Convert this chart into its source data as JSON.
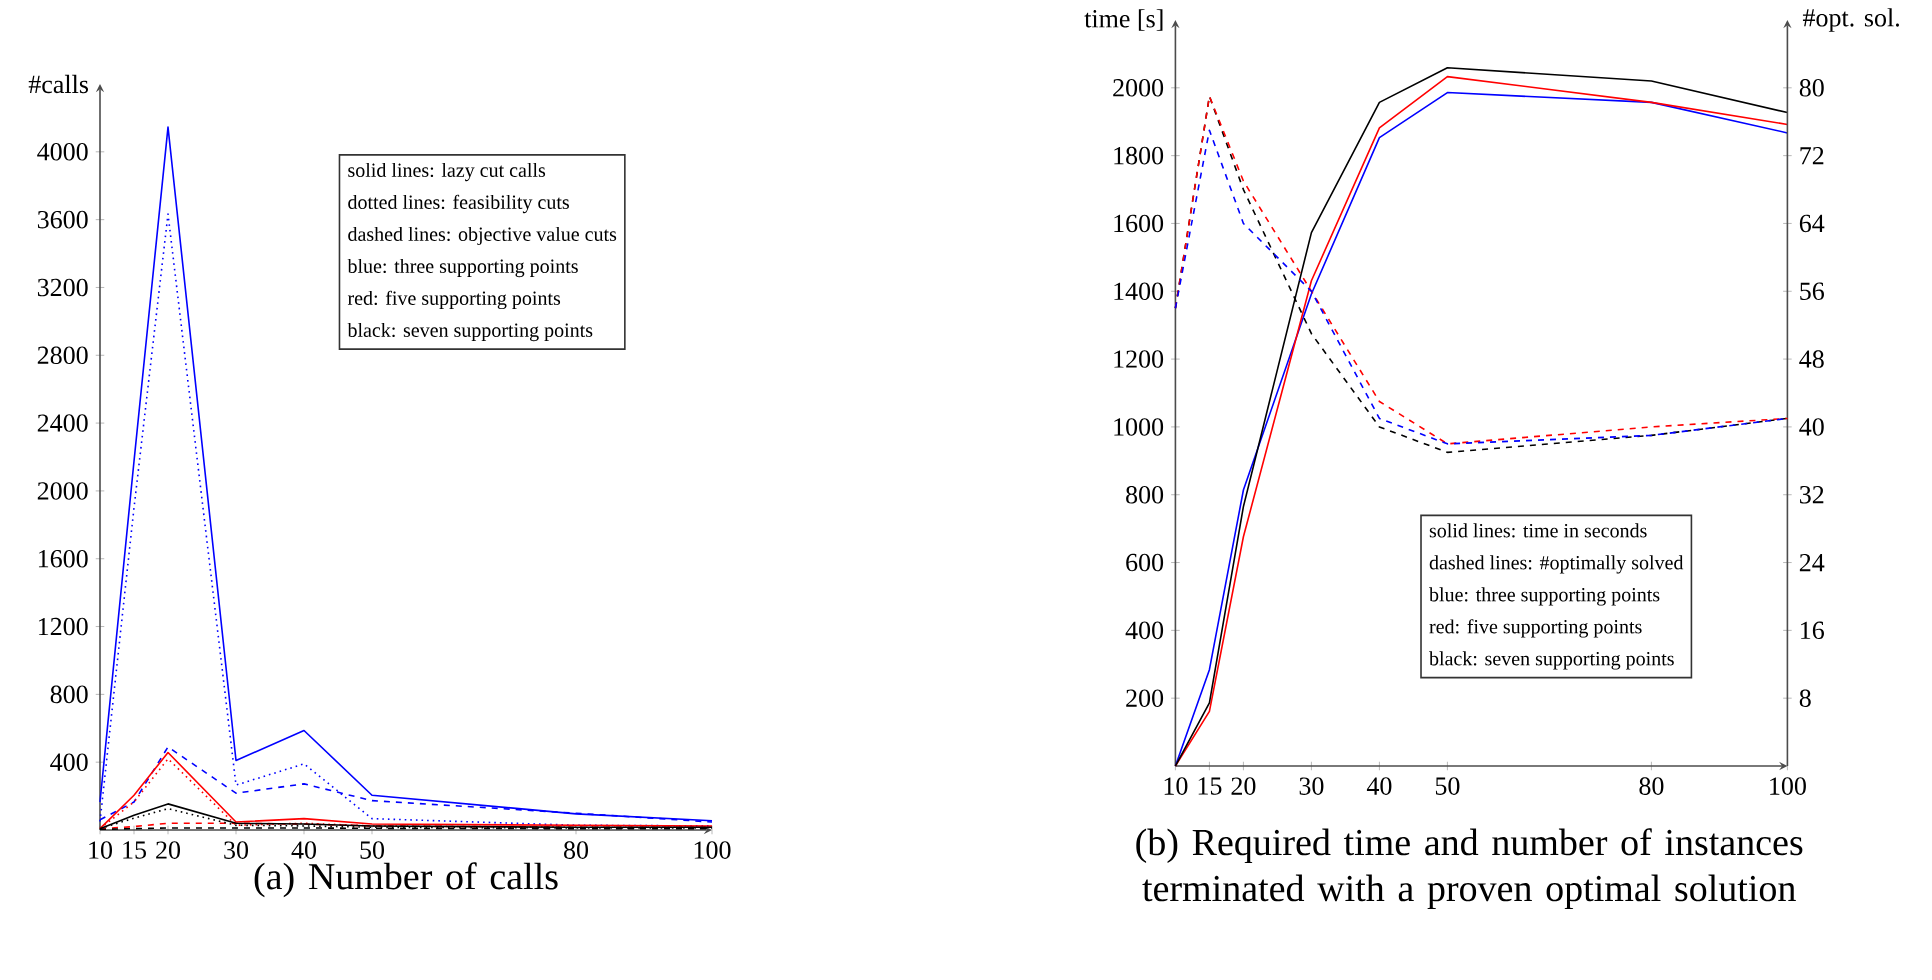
{
  "chart_data": [
    {
      "type": "line",
      "title": "(a) Number of calls",
      "ylabel": "#calls",
      "x": [
        10,
        15,
        20,
        30,
        40,
        50,
        80,
        100
      ],
      "xlim": [
        10,
        100
      ],
      "xticks": [
        10,
        15,
        20,
        30,
        40,
        50,
        80,
        100
      ],
      "ylim": [
        0,
        4400
      ],
      "yticks": [
        400,
        800,
        1200,
        1600,
        2000,
        2400,
        2800,
        3200,
        3600,
        4000
      ],
      "annotations": [
        "solid lines: lazy cut calls",
        "dotted lines: feasibility cuts",
        "dashed lines: objective value cuts",
        "blue: three supporting points",
        "red: five supporting points",
        "black: seven supporting points"
      ],
      "series": [
        {
          "color": "#0000ff",
          "line_style": "solid",
          "values": [
            165,
            2175,
            4146,
            410,
            587,
            205,
            95,
            55
          ]
        },
        {
          "color": "#0000ff",
          "line_style": "dotted",
          "values": [
            50,
            1900,
            3633,
            265,
            390,
            67,
            28,
            24
          ]
        },
        {
          "color": "#0000ff",
          "line_style": "dashed",
          "values": [
            60,
            165,
            490,
            217,
            272,
            173,
            99,
            47
          ]
        },
        {
          "color": "#ff0000",
          "line_style": "solid",
          "values": [
            8,
            205,
            457,
            47,
            67,
            35,
            28,
            24
          ]
        },
        {
          "color": "#ff0000",
          "line_style": "dotted",
          "values": [
            8,
            165,
            420,
            28,
            40,
            24,
            16,
            16
          ]
        },
        {
          "color": "#ff0000",
          "line_style": "dashed",
          "values": [
            8,
            20,
            40,
            40,
            35,
            24,
            16,
            16
          ]
        },
        {
          "color": "#000000",
          "line_style": "solid",
          "values": [
            8,
            87,
            154,
            40,
            35,
            24,
            16,
            16
          ]
        },
        {
          "color": "#000000",
          "line_style": "dotted",
          "values": [
            8,
            70,
            126,
            28,
            24,
            16,
            12,
            12
          ]
        },
        {
          "color": "#000000",
          "line_style": "dashed",
          "values": [
            4,
            8,
            12,
            12,
            12,
            10,
            8,
            8
          ]
        }
      ]
    },
    {
      "type": "line",
      "title": "(b) Required time and number of instances terminated with a proven optimal solution",
      "ylabel": "time [s]",
      "y2label": "#opt. sol.",
      "x": [
        10,
        15,
        20,
        30,
        40,
        50,
        80,
        100
      ],
      "xlim": [
        10,
        100
      ],
      "xticks": [
        10,
        15,
        20,
        30,
        40,
        50,
        80,
        100
      ],
      "ylim": [
        0,
        2200
      ],
      "yticks": [
        200,
        400,
        600,
        800,
        1000,
        1200,
        1400,
        1600,
        1800,
        2000
      ],
      "y2lim": [
        0,
        88
      ],
      "y2ticks": [
        8,
        16,
        24,
        32,
        40,
        48,
        56,
        64,
        72,
        80
      ],
      "annotations": [
        "solid lines: time in seconds",
        "dashed lines: #optimally solved",
        "blue: three supporting points",
        "red: five supporting points",
        "black: seven supporting points"
      ],
      "series": [
        {
          "color": "#0000ff",
          "line_style": "solid",
          "values": [
            0,
            284,
            814,
            1392,
            1853,
            1986,
            1957,
            1867
          ]
        },
        {
          "color": "#ff0000",
          "line_style": "solid",
          "values": [
            0,
            161,
            676,
            1431,
            1882,
            2033,
            1957,
            1892
          ]
        },
        {
          "color": "#000000",
          "line_style": "solid",
          "values": [
            0,
            186,
            765,
            1573,
            1957,
            2059,
            2020,
            1927
          ]
        },
        {
          "color": "#000000",
          "line_style": "dashed",
          "axis": "y2",
          "values": [
            54,
            79,
            68,
            51,
            40,
            37,
            39,
            41
          ]
        },
        {
          "color": "#ff0000",
          "line_style": "dashed",
          "axis": "y2",
          "values": [
            54,
            79,
            69,
            56,
            43,
            38,
            40,
            41
          ]
        },
        {
          "color": "#0000ff",
          "line_style": "dashed",
          "axis": "y2",
          "values": [
            54,
            75,
            64,
            56,
            41,
            38,
            39,
            41
          ]
        }
      ]
    }
  ]
}
